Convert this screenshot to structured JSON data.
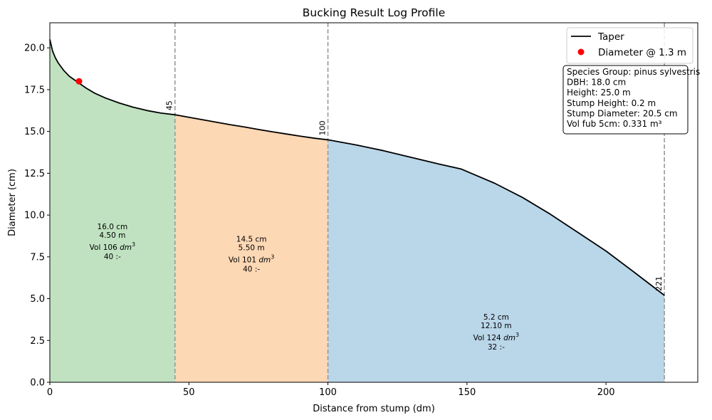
{
  "chart_data": {
    "type": "area",
    "title": "Bucking Result Log Profile",
    "xlabel": "Distance from stump (dm)",
    "ylabel": "Diameter (cm)",
    "xlim": [
      0,
      233
    ],
    "ylim": [
      0,
      21.5
    ],
    "xticks": [
      0,
      50,
      100,
      150,
      200
    ],
    "yticks": [
      0.0,
      2.5,
      5.0,
      7.5,
      10.0,
      12.5,
      15.0,
      17.5,
      20.0
    ],
    "grid": false,
    "legend_position": "top-right",
    "taper": {
      "name": "Taper",
      "color": "#000000",
      "x": [
        0,
        1,
        2,
        3,
        5,
        7,
        10,
        13,
        16,
        20,
        25,
        30,
        35,
        40,
        45,
        50,
        55,
        60,
        65,
        70,
        75,
        80,
        85,
        90,
        95,
        100,
        110,
        120,
        130,
        140,
        148,
        160,
        170,
        180,
        190,
        200,
        210,
        221
      ],
      "y": [
        20.5,
        19.8,
        19.4,
        19.1,
        18.65,
        18.3,
        17.95,
        17.6,
        17.3,
        17.0,
        16.7,
        16.45,
        16.25,
        16.1,
        16.0,
        15.85,
        15.7,
        15.55,
        15.4,
        15.27,
        15.12,
        14.98,
        14.85,
        14.72,
        14.6,
        14.5,
        14.2,
        13.85,
        13.45,
        13.05,
        12.75,
        11.9,
        11.05,
        10.05,
        8.95,
        7.85,
        6.6,
        5.2
      ]
    },
    "dbh_point": {
      "name": "Diameter @ 1.3 m",
      "x": 10.5,
      "y": 18.0,
      "color": "#ff0000"
    },
    "segments": [
      {
        "start": 0,
        "end": 45,
        "color": "#c0e2c1",
        "diameter": "16.0 cm",
        "length": "4.50 m",
        "volume_prefix": "Vol 106 ",
        "volume_unit": "dm",
        "volume_exp": "3",
        "grade": "40 :-",
        "label_x": 22.5,
        "label_y": 8.0
      },
      {
        "start": 45,
        "end": 100,
        "color": "#fdd8b5",
        "diameter": "14.5 cm",
        "length": "5.50 m",
        "volume_prefix": "Vol 101 ",
        "volume_unit": "dm",
        "volume_exp": "3",
        "grade": "40 :-",
        "label_x": 72.5,
        "label_y": 7.25
      },
      {
        "start": 100,
        "end": 221,
        "color": "#bad6e9",
        "diameter": "5.2 cm",
        "length": "12.10 m",
        "volume_prefix": "Vol 124 ",
        "volume_unit": "dm",
        "volume_exp": "3",
        "grade": "32 :-",
        "label_x": 160.5,
        "label_y": 2.6
      }
    ],
    "cut_lines": [
      {
        "x": 45,
        "label": "45"
      },
      {
        "x": 100,
        "label": "100"
      },
      {
        "x": 221,
        "label": "221"
      }
    ],
    "info_box": [
      "Species Group: pinus sylvestris",
      "DBH: 18.0 cm",
      "Height: 25.0 m",
      "Stump Height: 0.2 m",
      "Stump Diameter: 20.5 cm",
      "Vol fub 5cm: 0.331 m³"
    ]
  }
}
